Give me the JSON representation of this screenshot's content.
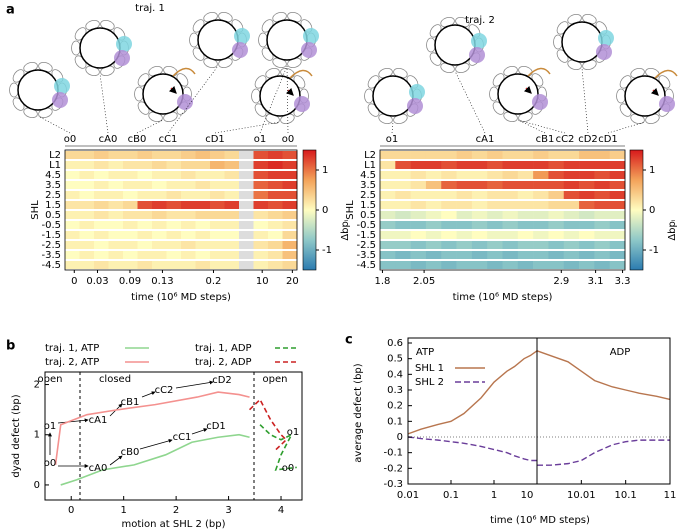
{
  "panel_labels": [
    "a",
    "b",
    "c"
  ],
  "panel_a": {
    "ylabel": "SHL",
    "xlabel": "time (10⁶ MD steps)",
    "colorbar": {
      "label": "Δbpᵢ",
      "lim": [
        -1.5,
        1.5
      ],
      "ticks": [
        1,
        0,
        -1
      ]
    },
    "row_labels": [
      "L2",
      "L1",
      "4.5",
      "3.5",
      "2.5",
      "1.5",
      "0.5",
      "-0.5",
      "-1.5",
      "-2.5",
      "-3.5",
      "-4.5"
    ],
    "heatmaps": [
      {
        "title": "traj. 1",
        "states": [
          "o0",
          "cA0",
          "cB0",
          "cC1",
          "cD1",
          "o1",
          "o0"
        ],
        "xticks": [
          0,
          0.03,
          0.09,
          0.13,
          0.2,
          10,
          20
        ],
        "rows": [
          [
            0.3,
            0.3,
            0.4,
            0.3,
            0.3,
            0.4,
            0.3,
            0.3,
            0.4,
            0.5,
            0.4,
            0.3,
            null,
            1.2,
            1.3,
            1.2
          ],
          [
            0.1,
            0.1,
            0.2,
            0.1,
            0.2,
            0.2,
            0.3,
            0.2,
            0.3,
            0.3,
            0.6,
            0.5,
            null,
            1.3,
            1.4,
            1.3
          ],
          [
            0,
            0.1,
            0,
            0.1,
            0.1,
            0,
            0.1,
            0.1,
            0.2,
            0.1,
            0.1,
            0.2,
            null,
            1.2,
            1.3,
            1.3
          ],
          [
            0,
            0,
            0.1,
            0,
            0.1,
            0.1,
            0,
            0.1,
            0.1,
            0.2,
            0.1,
            0.1,
            null,
            1.1,
            1.2,
            1.3
          ],
          [
            0.1,
            0,
            0.1,
            0.1,
            0,
            0.1,
            0.1,
            0.2,
            0.1,
            0.1,
            0.2,
            0.1,
            null,
            1.0,
            1.2,
            1.2
          ],
          [
            0.2,
            0.2,
            0.3,
            0.2,
            0.3,
            1.2,
            1.3,
            1.2,
            1.3,
            1.3,
            1.2,
            1.3,
            null,
            1.3,
            1.2,
            1.3
          ],
          [
            0.1,
            0.1,
            0.2,
            0.1,
            0.2,
            0.2,
            0.3,
            0.2,
            0.2,
            0.3,
            0.3,
            0.3,
            null,
            0.2,
            0.3,
            0.4
          ],
          [
            0,
            0.1,
            0,
            0,
            0.1,
            0,
            0.1,
            0,
            0.1,
            0,
            0.1,
            0.1,
            null,
            0,
            0.1,
            0.2
          ],
          [
            0.1,
            0,
            0.1,
            0,
            0,
            0.1,
            0,
            0.1,
            0,
            0.1,
            0,
            0,
            null,
            0.1,
            0,
            0.3
          ],
          [
            0.1,
            0.1,
            0,
            0.1,
            0.1,
            0,
            0.1,
            0.1,
            0.2,
            0.1,
            0.1,
            0.1,
            null,
            0.2,
            0.3,
            0.6
          ],
          [
            0,
            0.1,
            0,
            0.1,
            0,
            0.1,
            0.1,
            0,
            0.1,
            0,
            0.1,
            0.1,
            null,
            0.1,
            0.2,
            0.5
          ],
          [
            0.1,
            0.1,
            0.2,
            0.1,
            0.1,
            0.2,
            0.1,
            0.1,
            0.1,
            0.2,
            0.1,
            0.1,
            null,
            0.1,
            0.2,
            0.3
          ]
        ]
      },
      {
        "title": "traj. 2",
        "states": [
          "o1",
          "cA1",
          "cB1",
          "cC2",
          "cD2",
          "cD1"
        ],
        "xticks": [
          1.8,
          2.05,
          2.9,
          3.1,
          3.3
        ],
        "rows": [
          [
            0.3,
            0.3,
            0.3,
            0.3,
            0.3,
            0.4,
            0.3,
            0.4,
            0.3,
            0.3,
            0.4,
            0.3,
            0.3,
            0.5,
            0.5,
            0.4
          ],
          [
            0.2,
            1.2,
            1.3,
            1.3,
            1.2,
            1.3,
            1.3,
            1.2,
            1.3,
            1.3,
            1.3,
            1.2,
            1.3,
            1.3,
            1.3,
            1.3
          ],
          [
            0.1,
            0.1,
            0.2,
            0.1,
            0.2,
            0.1,
            0.1,
            0.2,
            0.3,
            0.2,
            0.8,
            1.2,
            1.3,
            1.3,
            1.2,
            1.3
          ],
          [
            0.1,
            0.1,
            0.2,
            0.5,
            1.1,
            1.2,
            1.2,
            1.1,
            1.2,
            1.2,
            1.2,
            1.2,
            1.3,
            1.2,
            1.3,
            1.2
          ],
          [
            0.1,
            0.2,
            0.1,
            0.1,
            0.1,
            0.2,
            0.1,
            0.2,
            0.2,
            0.1,
            0.2,
            0.4,
            1.2,
            1.3,
            1.2,
            1.3
          ],
          [
            0.1,
            0.1,
            0.2,
            0.1,
            0.2,
            0.2,
            0.1,
            0.2,
            0.2,
            0.2,
            0.2,
            0.3,
            0.3,
            1.1,
            1.2,
            1.2
          ],
          [
            -0.2,
            -0.3,
            -0.2,
            -0.1,
            0,
            -0.2,
            -0.1,
            -0.2,
            -0.1,
            -0.2,
            -0.2,
            -0.1,
            -0.2,
            -0.3,
            -0.2,
            -0.2
          ],
          [
            -0.7,
            -0.8,
            -0.8,
            -0.7,
            -0.8,
            -0.8,
            -0.7,
            -0.8,
            -0.7,
            -0.8,
            -0.8,
            -0.7,
            -0.8,
            -0.8,
            -0.7,
            -0.8
          ],
          [
            -0.1,
            -0.1,
            0,
            -0.1,
            0,
            -0.1,
            0,
            -0.1,
            -0.1,
            0,
            -0.1,
            0,
            -0.1,
            0,
            -0.1,
            -0.1
          ],
          [
            -0.7,
            -0.7,
            -0.8,
            -0.7,
            -0.8,
            -0.7,
            -0.8,
            -0.7,
            -0.8,
            -0.7,
            -0.7,
            -0.8,
            -0.7,
            -0.8,
            -0.7,
            -0.8
          ],
          [
            -0.8,
            -0.9,
            -0.8,
            -0.9,
            -0.8,
            -0.8,
            -0.9,
            -0.8,
            -0.9,
            -0.8,
            -0.8,
            -0.9,
            -0.8,
            -0.9,
            -0.8,
            -0.9
          ],
          [
            -0.8,
            -0.8,
            -0.9,
            -0.8,
            -0.9,
            -0.8,
            -0.8,
            -0.9,
            -0.8,
            -0.9,
            -0.8,
            -0.8,
            -0.9,
            -0.8,
            -0.9,
            -0.8
          ]
        ]
      }
    ]
  },
  "panel_b": {
    "type": "line",
    "xlabel": "motion at SHL 2 (bp)",
    "ylabel": "dyad defect (bp)",
    "xlim": [
      -0.5,
      4.4
    ],
    "ylim": [
      -0.3,
      2.25
    ],
    "xticks": [
      0,
      1,
      2,
      3,
      4
    ],
    "yticks": [
      0,
      1,
      2
    ],
    "regions": [
      "open",
      "closed",
      "open"
    ],
    "state_labels": [
      "o0",
      "cA0",
      "cB0",
      "cC1",
      "cD1",
      "o1",
      "o0",
      "o1",
      "cA1",
      "cB1",
      "cC2",
      "cD2"
    ],
    "series": [
      {
        "name": "traj. 1, ATP",
        "color": "#8fd68f",
        "dash": false,
        "x": [
          -0.2,
          0.1,
          0.6,
          1.2,
          1.8,
          2.3,
          2.8,
          3.2,
          3.4
        ],
        "values": [
          0.0,
          0.1,
          0.3,
          0.4,
          0.6,
          0.85,
          0.95,
          1.0,
          0.95
        ]
      },
      {
        "name": "traj. 2, ATP",
        "color": "#f4918f",
        "dash": false,
        "x": [
          -0.3,
          -0.2,
          0.3,
          0.9,
          1.6,
          2.4,
          2.8,
          3.2,
          3.4
        ],
        "values": [
          0.4,
          1.2,
          1.4,
          1.5,
          1.6,
          1.75,
          1.85,
          1.8,
          1.75
        ]
      },
      {
        "name": "traj. 1, ADP",
        "color": "#2e9e2e",
        "dash": true,
        "x": [
          3.6,
          3.8,
          4.0,
          4.2,
          4.0,
          3.9,
          4.3
        ],
        "values": [
          1.2,
          1.0,
          0.9,
          1.0,
          0.6,
          0.3,
          0.35
        ]
      },
      {
        "name": "traj. 2, ADP",
        "color": "#cc2222",
        "dash": true,
        "x": [
          3.4,
          3.6,
          3.8,
          4.0,
          4.1,
          3.9
        ],
        "values": [
          1.5,
          1.7,
          1.3,
          1.0,
          0.9,
          0.7
        ]
      }
    ]
  },
  "panel_c": {
    "type": "line",
    "ylabel": "average defect (bp)",
    "xlabel": "time (10⁶ MD steps)",
    "ylim": [
      -0.3,
      0.6
    ],
    "yticks": [
      -0.3,
      -0.2,
      -0.1,
      0,
      0.1,
      0.2,
      0.3,
      0.4,
      0.5,
      0.6
    ],
    "legend": [
      "SHL 1",
      "SHL 2"
    ],
    "colors": [
      "#b8764f",
      "#6a3d9a"
    ],
    "panels": [
      {
        "title": "ATP",
        "log": true,
        "xlim": [
          0.01,
          10
        ],
        "xticks": [
          0.01,
          0.1,
          1,
          10
        ],
        "x": [
          0.01,
          0.02,
          0.05,
          0.1,
          0.2,
          0.5,
          1,
          2,
          3,
          5,
          7,
          10
        ],
        "series": [
          [
            0.02,
            0.05,
            0.08,
            0.1,
            0.15,
            0.25,
            0.35,
            0.42,
            0.45,
            0.5,
            0.52,
            0.55
          ],
          [
            0,
            -0.01,
            -0.02,
            -0.03,
            -0.04,
            -0.06,
            -0.08,
            -0.1,
            -0.12,
            -0.14,
            -0.15,
            -0.15
          ]
        ]
      },
      {
        "title": "ADP",
        "log": true,
        "xlim": [
          10.001,
          11
        ],
        "xticks": [
          10.01,
          10.1,
          11
        ],
        "x": [
          10.001,
          10.002,
          10.005,
          10.01,
          10.02,
          10.05,
          10.1,
          10.2,
          10.5,
          11
        ],
        "series": [
          [
            0.55,
            0.52,
            0.48,
            0.42,
            0.36,
            0.32,
            0.3,
            0.28,
            0.26,
            0.24
          ],
          [
            -0.18,
            -0.18,
            -0.17,
            -0.15,
            -0.1,
            -0.05,
            -0.03,
            -0.02,
            -0.02,
            -0.02
          ]
        ]
      }
    ]
  }
}
